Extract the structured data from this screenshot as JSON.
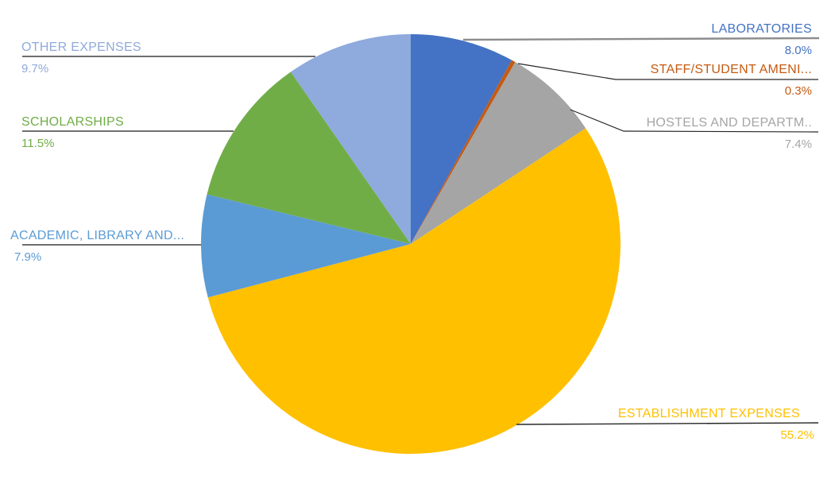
{
  "chart_data": {
    "type": "pie",
    "title": "",
    "legend_position": "none",
    "background": "#FFFFFF",
    "start_angle_deg": 0,
    "direction": "clockwise",
    "leader_lines": true,
    "slices": [
      {
        "label": "LABORATORIES",
        "pct_label": "8.0%",
        "value_pct": 8.0,
        "color": "#4472C4"
      },
      {
        "label": "STAFF/STUDENT AMENI...",
        "pct_label": "0.3%",
        "value_pct": 0.3,
        "color": "#C55A11"
      },
      {
        "label": "HOSTELS AND DEPARTM..",
        "pct_label": "7.4%",
        "value_pct": 7.4,
        "color": "#A5A5A5"
      },
      {
        "label": "ESTABLISHMENT EXPENSES",
        "pct_label": "55.2%",
        "value_pct": 55.2,
        "color": "#FFC000"
      },
      {
        "label": "ACADEMIC, LIBRARY AND...",
        "pct_label": "7.9%",
        "value_pct": 7.9,
        "color": "#5B9BD5"
      },
      {
        "label": "SCHOLARSHIPS",
        "pct_label": "11.5%",
        "value_pct": 11.5,
        "color": "#70AD47"
      },
      {
        "label": "OTHER EXPENSES",
        "pct_label": "9.7%",
        "value_pct": 9.7,
        "color": "#8FAADC"
      }
    ]
  }
}
